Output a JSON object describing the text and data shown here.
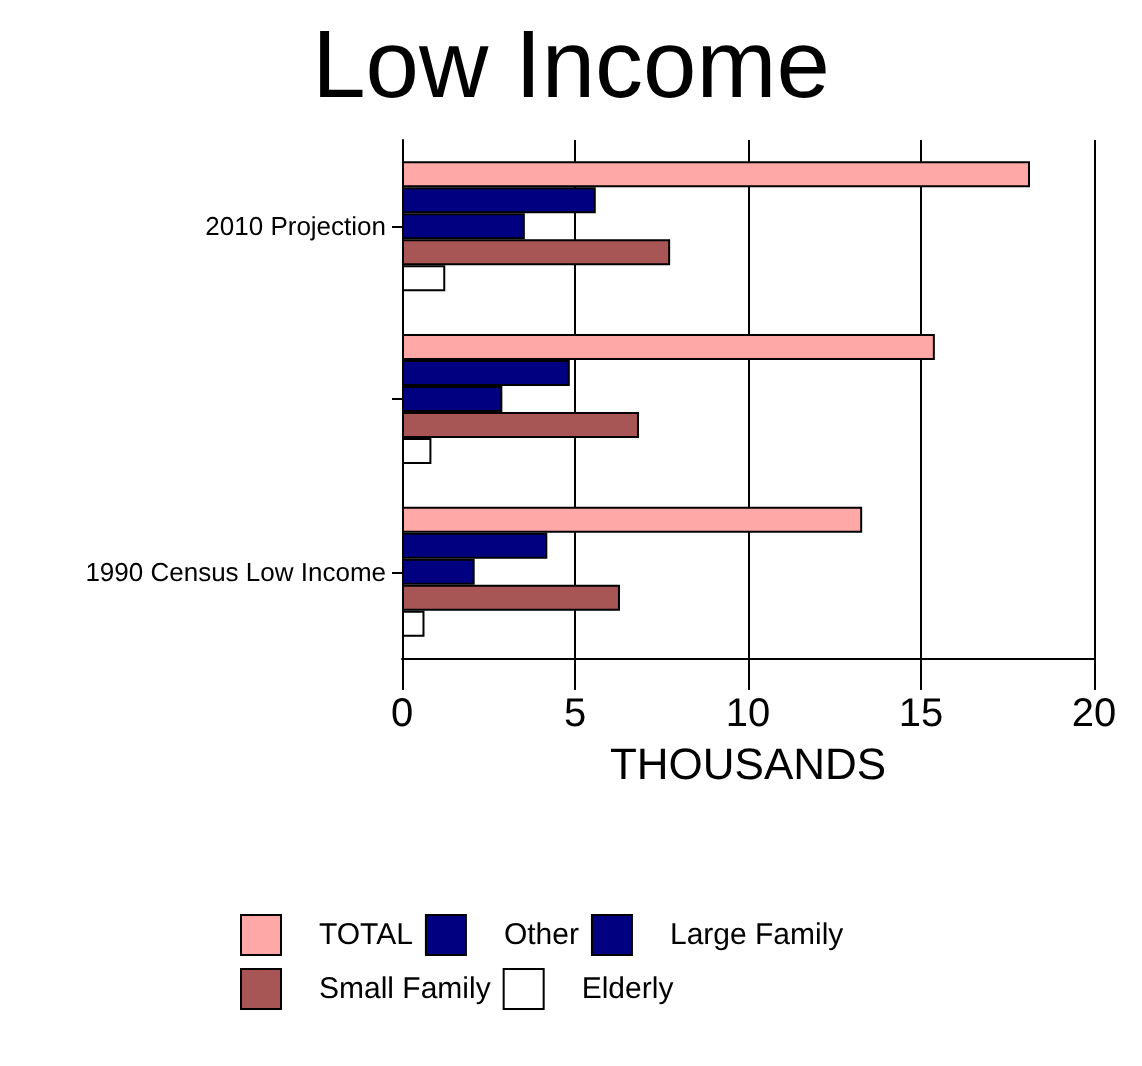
{
  "chart_data": {
    "type": "bar",
    "orientation": "horizontal",
    "title": "Low Income",
    "xlabel": "THOUSANDS",
    "categories": [
      "2010 Projection",
      null,
      "1990 Census Low Income"
    ],
    "series": [
      {
        "name": "TOTAL",
        "color": "#ffa8a8",
        "values": [
          18.15,
          15.4,
          13.3
        ]
      },
      {
        "name": "Other",
        "color": "#000080",
        "values": [
          5.6,
          4.85,
          4.2
        ]
      },
      {
        "name": "Large Family",
        "color": "#000080",
        "values": [
          3.55,
          2.9,
          2.1
        ]
      },
      {
        "name": "Small Family",
        "color": "#a85555",
        "values": [
          7.75,
          6.85,
          6.3
        ]
      },
      {
        "name": "Elderly",
        "color": "#ffffff",
        "values": [
          1.25,
          0.85,
          0.65
        ]
      }
    ],
    "xlim": [
      0,
      20
    ],
    "xticks": [
      0,
      5,
      10,
      15,
      20
    ],
    "grid": "x",
    "legend": "bottom"
  }
}
